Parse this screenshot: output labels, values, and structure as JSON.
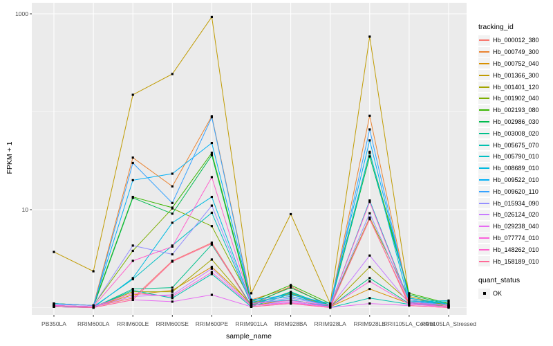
{
  "chart_data": {
    "type": "line",
    "title": "",
    "xlabel": "sample_name",
    "ylabel": "FPKM + 1",
    "y_scale": "log10",
    "y_tick_labels": [
      "1000",
      "10"
    ],
    "y_tick_values": [
      1000,
      10
    ],
    "y_major_gridlines": [
      10,
      1000
    ],
    "y_minor_gridlines": [
      1,
      100
    ],
    "ylim": [
      0.84,
      1300
    ],
    "grid": "on",
    "legend_position": "right",
    "panel_bg": "#EBEBEB",
    "grid_color": "#FFFFFF",
    "point_color": "#000000",
    "axis_text_color": "#4D4D4D",
    "legend_title": "tracking_id",
    "legend2": {
      "title": "quant_status",
      "items": [
        {
          "label": "OK",
          "marker": "black-square-point"
        }
      ]
    },
    "categories": [
      "PB350LA",
      "RRIM600LA",
      "RRIM600LE",
      "RRIM600SE",
      "RRIM600PE",
      "RRIM901LA",
      "RRIM928BA",
      "RRIM928LA",
      "RRIM928LE",
      "RRII105LA_Control",
      "RRII105LA_Stressed"
    ],
    "series": [
      {
        "name": "Hb_000012_380",
        "color": "#F8766D",
        "values": [
          1.05,
          1.02,
          1.25,
          3.0,
          4.6,
          1.05,
          1.65,
          1.02,
          8.0,
          1.1,
          1.02
        ]
      },
      {
        "name": "Hb_000749_300",
        "color": "#EA8331",
        "values": [
          1.1,
          1.05,
          34,
          17.3,
          90,
          1.2,
          1.6,
          1.05,
          91,
          1.2,
          1.05
        ]
      },
      {
        "name": "Hb_000752_040",
        "color": "#D89000",
        "values": [
          1.05,
          1.02,
          1.35,
          1.5,
          2.6,
          1.1,
          1.4,
          1.02,
          1.55,
          1.1,
          1.02
        ]
      },
      {
        "name": "Hb_001366_300",
        "color": "#C09B00",
        "values": [
          3.7,
          2.35,
          149,
          243,
          930,
          1.4,
          9.0,
          1.1,
          585,
          1.3,
          1.05
        ]
      },
      {
        "name": "Hb_001401_120",
        "color": "#A3A500",
        "values": [
          1.05,
          1.02,
          1.45,
          1.45,
          3.1,
          1.05,
          1.2,
          1.02,
          2.6,
          1.15,
          1.02
        ]
      },
      {
        "name": "Hb_001902_040",
        "color": "#7CAE00",
        "values": [
          1.1,
          1.05,
          3.8,
          10.3,
          6.8,
          1.15,
          1.3,
          1.05,
          8.3,
          1.25,
          1.05
        ]
      },
      {
        "name": "Hb_002193_080",
        "color": "#39B600",
        "values": [
          1.1,
          1.05,
          13.5,
          10.5,
          38,
          1.15,
          1.7,
          1.1,
          38,
          1.4,
          1.1
        ]
      },
      {
        "name": "Hb_002986_030",
        "color": "#00BB4E",
        "values": [
          1.05,
          1.02,
          13.2,
          9.1,
          36,
          1.1,
          1.6,
          1.05,
          35,
          1.35,
          1.08
        ]
      },
      {
        "name": "Hb_003008_020",
        "color": "#00C08B",
        "values": [
          1.02,
          1.0,
          1.55,
          1.6,
          4.4,
          1.05,
          1.45,
          1.02,
          2.0,
          1.1,
          1.05
        ]
      },
      {
        "name": "Hb_005675_070",
        "color": "#00C0AF",
        "values": [
          1.02,
          1.0,
          1.5,
          1.25,
          2.2,
          1.02,
          1.38,
          1.0,
          1.25,
          1.08,
          1.15
        ]
      },
      {
        "name": "Hb_005790_010",
        "color": "#00BFC4",
        "values": [
          1.05,
          1.02,
          1.95,
          4.3,
          9.3,
          1.08,
          1.42,
          1.05,
          12.4,
          1.15,
          1.18
        ]
      },
      {
        "name": "Hb_008689_010",
        "color": "#00BAE0",
        "values": [
          1.05,
          1.0,
          2.0,
          7.35,
          13.5,
          1.1,
          1.2,
          1.02,
          39,
          1.12,
          1.15
        ]
      },
      {
        "name": "Hb_009522_010",
        "color": "#00B0F6",
        "values": [
          1.1,
          1.05,
          20,
          23.3,
          48,
          1.2,
          1.35,
          1.1,
          51,
          1.25,
          1.08
        ]
      },
      {
        "name": "Hb_009620_110",
        "color": "#35A2FF",
        "values": [
          1.05,
          1.02,
          30,
          11.7,
          88,
          1.15,
          1.3,
          1.05,
          66,
          1.2,
          1.05
        ]
      },
      {
        "name": "Hb_015934_090",
        "color": "#9590FF",
        "values": [
          1.08,
          1.05,
          4.3,
          3.5,
          11.0,
          1.1,
          1.25,
          1.05,
          9.2,
          1.15,
          1.05
        ]
      },
      {
        "name": "Hb_026124_020",
        "color": "#C77CFF",
        "values": [
          1.05,
          1.02,
          1.3,
          1.35,
          2.5,
          1.05,
          1.15,
          1.02,
          3.4,
          1.1,
          1.02
        ]
      },
      {
        "name": "Hb_029238_040",
        "color": "#E76BF3",
        "values": [
          1.02,
          1.0,
          1.2,
          1.15,
          1.35,
          1.02,
          1.1,
          1.0,
          1.1,
          1.05,
          1.0
        ]
      },
      {
        "name": "Hb_077774_010",
        "color": "#FA62DB",
        "values": [
          1.05,
          1.02,
          1.4,
          1.3,
          2.3,
          1.05,
          1.12,
          1.02,
          1.85,
          1.08,
          1.02
        ]
      },
      {
        "name": "Hb_148262_010",
        "color": "#FF61CC",
        "values": [
          1.05,
          1.02,
          3.0,
          4.2,
          21.5,
          1.1,
          1.18,
          1.05,
          12.0,
          1.12,
          1.05
        ]
      },
      {
        "name": "Hb_158189_010",
        "color": "#FF6A98",
        "values": [
          1.02,
          1.0,
          1.2,
          2.95,
          4.5,
          1.02,
          1.1,
          1.0,
          8.2,
          1.05,
          1.0
        ]
      }
    ]
  }
}
